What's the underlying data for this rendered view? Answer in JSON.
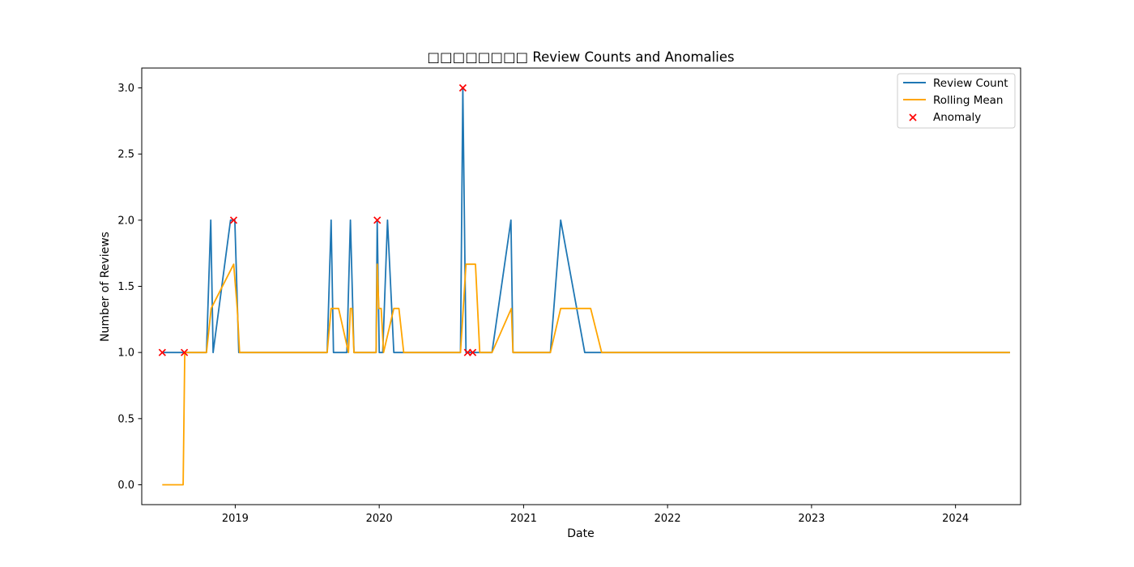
{
  "chart_data": {
    "type": "line",
    "title": "□□□□□□□□ Review Counts and Anomalies",
    "xlabel": "Date",
    "ylabel": "Number of Reviews",
    "xlim": [
      "2018-05-09",
      "2024-06-14"
    ],
    "ylim": [
      -0.15,
      3.15
    ],
    "x_ticks": [
      "2019-01-01",
      "2020-01-01",
      "2021-01-01",
      "2022-01-01",
      "2023-01-01",
      "2024-01-01"
    ],
    "x_tick_labels": [
      "2019",
      "2020",
      "2021",
      "2022",
      "2023",
      "2024"
    ],
    "y_ticks": [
      0.0,
      0.5,
      1.0,
      1.5,
      2.0,
      2.5,
      3.0
    ],
    "y_tick_labels": [
      "0.0",
      "0.5",
      "1.0",
      "1.5",
      "2.0",
      "2.5",
      "3.0"
    ],
    "grid": false,
    "legend_position": "top-right",
    "series": [
      {
        "name": "Review Count",
        "kind": "line",
        "color": "#1f77b4",
        "x": [
          "2018-06-30",
          "2018-07-15",
          "2018-08-25",
          "2018-10-20",
          "2018-10-31",
          "2018-11-06",
          "2018-12-20",
          "2018-12-31",
          "2019-01-10",
          "2019-08-22",
          "2019-09-01",
          "2019-09-07",
          "2019-10-11",
          "2019-10-20",
          "2019-10-29",
          "2019-12-24",
          "2019-12-27",
          "2020-01-01",
          "2020-01-10",
          "2020-01-22",
          "2020-02-07",
          "2020-07-25",
          "2020-07-31",
          "2020-08-08",
          "2020-08-18",
          "2020-10-13",
          "2020-11-30",
          "2020-12-05",
          "2021-03-10",
          "2021-04-05",
          "2021-06-05",
          "2021-07-18",
          "2024-05-18"
        ],
        "y": [
          1,
          1,
          1,
          1,
          2,
          1,
          2,
          2,
          1,
          1,
          2,
          1,
          1,
          2,
          1,
          1,
          2,
          1,
          1,
          2,
          1,
          1,
          3,
          1,
          1,
          1,
          2,
          1,
          1,
          2,
          1,
          1,
          1
        ]
      },
      {
        "name": "Rolling Mean",
        "kind": "line",
        "color": "#ffa500",
        "x": [
          "2018-06-30",
          "2018-08-22",
          "2018-08-26",
          "2018-10-20",
          "2018-11-01",
          "2018-12-28",
          "2019-01-06",
          "2019-01-12",
          "2019-08-22",
          "2019-09-01",
          "2019-09-20",
          "2019-10-15",
          "2019-10-20",
          "2019-10-24",
          "2019-10-29",
          "2019-12-24",
          "2019-12-27",
          "2019-12-31",
          "2020-01-06",
          "2020-01-12",
          "2020-02-07",
          "2020-02-20",
          "2020-03-03",
          "2020-07-25",
          "2020-08-08",
          "2020-09-01",
          "2020-09-12",
          "2020-10-13",
          "2020-12-01",
          "2020-12-05",
          "2021-03-10",
          "2021-04-05",
          "2021-06-20",
          "2021-07-18",
          "2024-05-18"
        ],
        "y": [
          0,
          0,
          1,
          1,
          1.333,
          1.667,
          1.333,
          1,
          1,
          1.333,
          1.333,
          1,
          1.333,
          1.333,
          1,
          1,
          1.667,
          1.333,
          1.333,
          1,
          1.333,
          1.333,
          1,
          1,
          1.667,
          1.667,
          1,
          1,
          1.333,
          1,
          1,
          1.333,
          1.333,
          1,
          1
        ]
      },
      {
        "name": "Anomaly",
        "kind": "scatter",
        "marker": "x",
        "color": "#ff0000",
        "x": [
          "2018-06-30",
          "2018-08-25",
          "2018-12-28",
          "2019-12-27",
          "2020-07-31",
          "2020-08-12",
          "2020-08-25"
        ],
        "y": [
          1,
          1,
          2,
          2,
          3,
          1,
          1
        ]
      }
    ]
  }
}
